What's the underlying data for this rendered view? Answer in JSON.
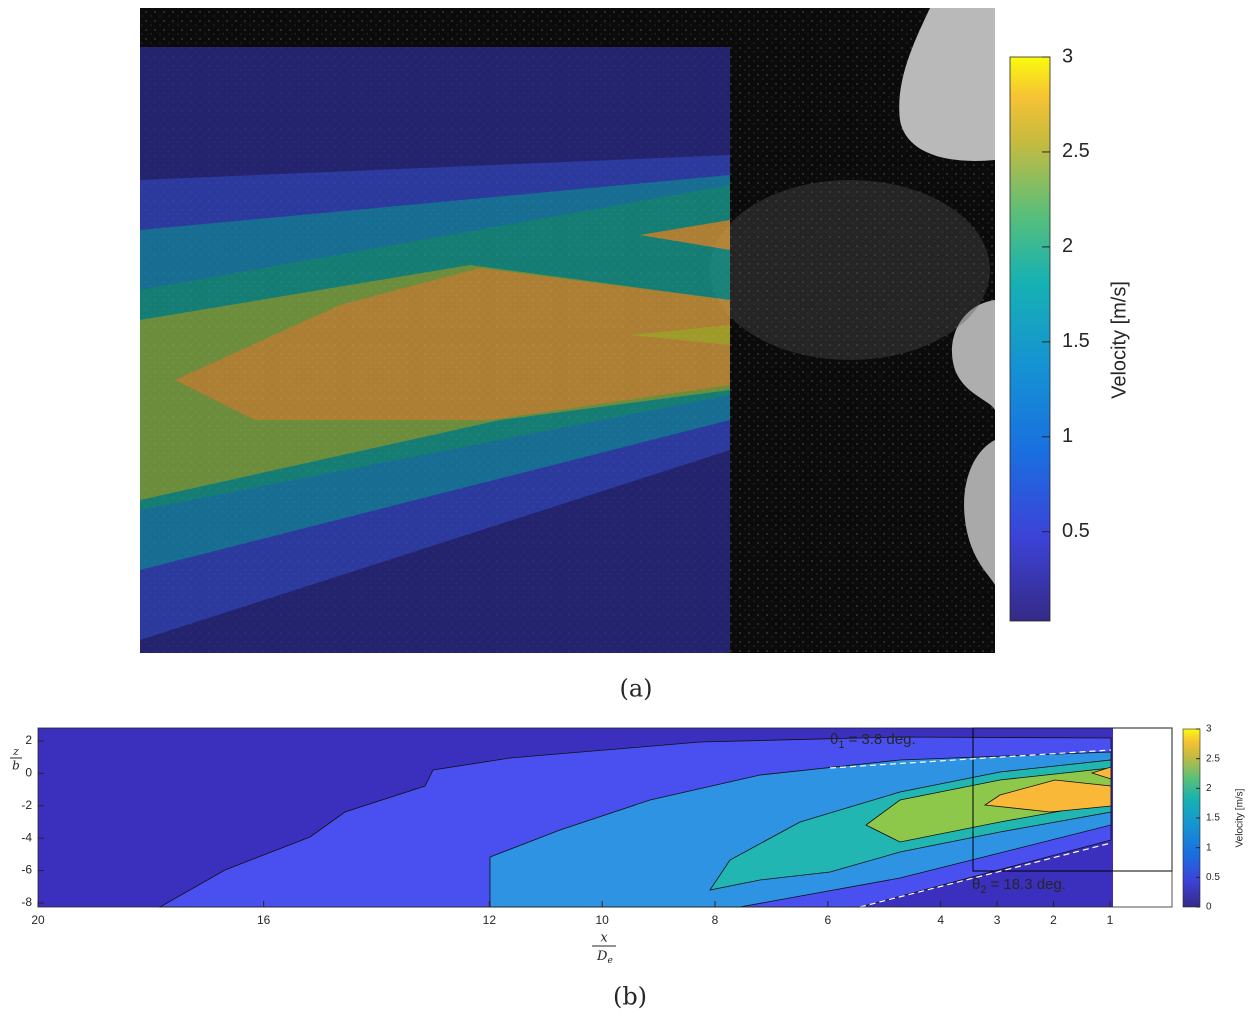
{
  "chart_data": [
    {
      "type": "contour-overlay",
      "caption": "(a)",
      "colorbar": {
        "label": "Velocity [m/s]",
        "lim": [
          0.03,
          3
        ],
        "ticks": [
          0.5,
          1,
          1.5,
          2,
          2.5,
          3
        ]
      }
    },
    {
      "type": "contour",
      "caption": "(b)",
      "xlabel": {
        "numerator": "x",
        "denominator": "D",
        "subscript": "e"
      },
      "ylabel": {
        "numerator": "z",
        "denominator": "b"
      },
      "xlim": [
        20,
        -0.1
      ],
      "xticks": [
        20,
        16,
        12,
        10,
        8,
        6,
        4,
        3,
        2,
        1
      ],
      "ylim": [
        -8.25,
        2.8
      ],
      "yticks": [
        -8,
        -6,
        -4,
        -2,
        0,
        2
      ],
      "annotations": [
        {
          "symbol": "θ",
          "subscript": "1",
          "text": "= 3.8 deg."
        },
        {
          "symbol": "θ",
          "subscript": "2",
          "text": "= 18.3 deg."
        }
      ],
      "colorbar": {
        "label": "Velocity [m/s]",
        "lim": [
          0,
          3
        ],
        "ticks": [
          0,
          0.5,
          1,
          1.5,
          2,
          2.5,
          3
        ]
      }
    }
  ]
}
